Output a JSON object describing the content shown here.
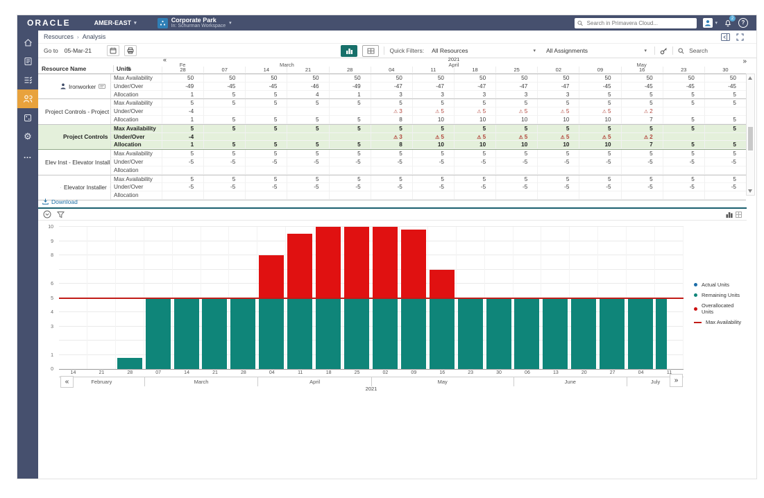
{
  "icons": {
    "caret": "▾",
    "sort": "⇅",
    "help": "?",
    "crumb_sep": "›",
    "warn": "⚠",
    "gear": "⚙",
    "more": "…"
  },
  "topbar": {
    "brand": "ORACLE",
    "org": "AMER-EAST",
    "workspace_title": "Corporate Park",
    "workspace_subtitle": "In: Schurman Workspace",
    "search_placeholder": "Search in Primavera Cloud...",
    "notification_count": "2"
  },
  "sidebar": {
    "items": [
      "home",
      "projects",
      "schedule",
      "resources",
      "dashboards",
      "settings",
      "more"
    ],
    "active_item": "resources"
  },
  "breadcrumb": {
    "items": [
      "Resources",
      "Analysis"
    ]
  },
  "toolbar": {
    "goto_label": "Go to",
    "goto_value": "05-Mar-21",
    "quick_filters_label": "Quick Filters:",
    "resources_filter": "All Resources",
    "assignments_filter": "All Assignments",
    "search_label": "Search"
  },
  "table": {
    "resource_col": "Resource Name",
    "units_col": "Units",
    "year": "2021",
    "prev_label": "«",
    "next_label": "»",
    "month_groups": [
      {
        "label": "Fe",
        "cols": 1
      },
      {
        "label": "March",
        "cols": 4
      },
      {
        "label": "April",
        "cols": 4
      },
      {
        "label": "May",
        "cols": 5
      }
    ],
    "day_cols": [
      "28",
      "07",
      "14",
      "21",
      "28",
      "04",
      "11",
      "18",
      "25",
      "02",
      "09",
      "16",
      "23",
      "30"
    ],
    "row_labels": [
      "Max Availability",
      "Under/Over",
      "Allocation"
    ],
    "resources": [
      {
        "name": "Ironworker",
        "type": "leaf",
        "selected": false,
        "max": [
          "50",
          "50",
          "50",
          "50",
          "50",
          "50",
          "50",
          "50",
          "50",
          "50",
          "50",
          "50",
          "50",
          "50"
        ],
        "under_over": [
          "-49",
          "-45",
          "-45",
          "-46",
          "-49",
          "-47",
          "-47",
          "-47",
          "-47",
          "-47",
          "-45",
          "-45",
          "-45",
          "-45"
        ],
        "warn": [],
        "allocation": [
          "1",
          "5",
          "5",
          "4",
          "1",
          "3",
          "3",
          "3",
          "3",
          "3",
          "5",
          "5",
          "5",
          "5"
        ]
      },
      {
        "name": "Project Controls - Project Co...",
        "type": "group",
        "selected": false,
        "max": [
          "5",
          "5",
          "5",
          "5",
          "5",
          "5",
          "5",
          "5",
          "5",
          "5",
          "5",
          "5",
          "5",
          "5"
        ],
        "under_over": [
          "-4",
          "",
          "",
          "",
          "",
          "3",
          "5",
          "5",
          "5",
          "5",
          "5",
          "2",
          "",
          ""
        ],
        "warn": [
          5,
          6,
          7,
          8,
          9,
          10,
          11
        ],
        "allocation": [
          "1",
          "5",
          "5",
          "5",
          "5",
          "8",
          "10",
          "10",
          "10",
          "10",
          "10",
          "7",
          "5",
          "5"
        ]
      },
      {
        "name": "Project Controls",
        "type": "leaf",
        "selected": true,
        "max": [
          "5",
          "5",
          "5",
          "5",
          "5",
          "5",
          "5",
          "5",
          "5",
          "5",
          "5",
          "5",
          "5",
          "5"
        ],
        "under_over": [
          "-4",
          "",
          "",
          "",
          "",
          "3",
          "5",
          "5",
          "5",
          "5",
          "5",
          "2",
          "",
          ""
        ],
        "warn": [
          5,
          6,
          7,
          8,
          9,
          10,
          11
        ],
        "allocation": [
          "1",
          "5",
          "5",
          "5",
          "5",
          "8",
          "10",
          "10",
          "10",
          "10",
          "10",
          "7",
          "5",
          "5"
        ]
      },
      {
        "name": "Elev Inst - Elevator Installer",
        "type": "group",
        "selected": false,
        "max": [
          "5",
          "5",
          "5",
          "5",
          "5",
          "5",
          "5",
          "5",
          "5",
          "5",
          "5",
          "5",
          "5",
          "5"
        ],
        "under_over": [
          "-5",
          "-5",
          "-5",
          "-5",
          "-5",
          "-5",
          "-5",
          "-5",
          "-5",
          "-5",
          "-5",
          "-5",
          "-5",
          "-5"
        ],
        "warn": [],
        "allocation": [
          "",
          "",
          "",
          "",
          "",
          "",
          "",
          "",
          "",
          "",
          "",
          "",
          "",
          ""
        ]
      },
      {
        "name": "Elevator Installer",
        "type": "leaf",
        "selected": false,
        "max": [
          "5",
          "5",
          "5",
          "5",
          "5",
          "5",
          "5",
          "5",
          "5",
          "5",
          "5",
          "5",
          "5",
          "5"
        ],
        "under_over": [
          "-5",
          "-5",
          "-5",
          "-5",
          "-5",
          "-5",
          "-5",
          "-5",
          "-5",
          "-5",
          "-5",
          "-5",
          "-5",
          "-5"
        ],
        "warn": [],
        "allocation": [
          "",
          "",
          "",
          "",
          "",
          "",
          "",
          "",
          "",
          "",
          "",
          "",
          "",
          ""
        ]
      }
    ]
  },
  "download_label": "Download",
  "chart_data": {
    "type": "bar",
    "stacked": true,
    "title": "",
    "xlabel": "2021",
    "ylabel": "",
    "ylim": [
      0,
      10
    ],
    "grid": true,
    "legend_position": "right",
    "year_label": "2021",
    "prev_label": "«",
    "next_label": "»",
    "x": [
      "14",
      "21",
      "28",
      "07",
      "14",
      "21",
      "28",
      "04",
      "11",
      "18",
      "25",
      "02",
      "09",
      "16",
      "23",
      "30",
      "06",
      "13",
      "20",
      "27",
      "04",
      "11"
    ],
    "month_groups": [
      {
        "label": "February",
        "cols": 3
      },
      {
        "label": "March",
        "cols": 4
      },
      {
        "label": "April",
        "cols": 4
      },
      {
        "label": "May",
        "cols": 5
      },
      {
        "label": "June",
        "cols": 4
      },
      {
        "label": "July",
        "cols": 2
      }
    ],
    "y_ticks_shown": [
      0,
      1,
      3,
      4,
      5,
      6,
      8,
      9,
      10
    ],
    "series": [
      {
        "name": "Remaining Units",
        "color": "#0f8579",
        "values": [
          0,
          0,
          0.8,
          5,
          5,
          5,
          5,
          5,
          5,
          5,
          5,
          5,
          5,
          5,
          5,
          5,
          5,
          5,
          5,
          5,
          5,
          5
        ]
      },
      {
        "name": "Overallocated Units",
        "color": "#e01111",
        "values": [
          0,
          0,
          0,
          0,
          0,
          0,
          0,
          3,
          4.5,
          5,
          5,
          5,
          4.8,
          2,
          0,
          0,
          0,
          0,
          0,
          0,
          0,
          0
        ]
      }
    ],
    "max_availability": 5,
    "max_availability_color": "#c11b17",
    "legend": [
      {
        "label": "Actual Units",
        "color": "#1b6ca8",
        "type": "dot"
      },
      {
        "label": "Remaining Units",
        "color": "#0f8579",
        "type": "dot"
      },
      {
        "label": "Overallocated Units",
        "color": "#cc1111",
        "type": "dot"
      },
      {
        "label": "Max Availability",
        "color": "#c11b17",
        "type": "line"
      }
    ]
  }
}
